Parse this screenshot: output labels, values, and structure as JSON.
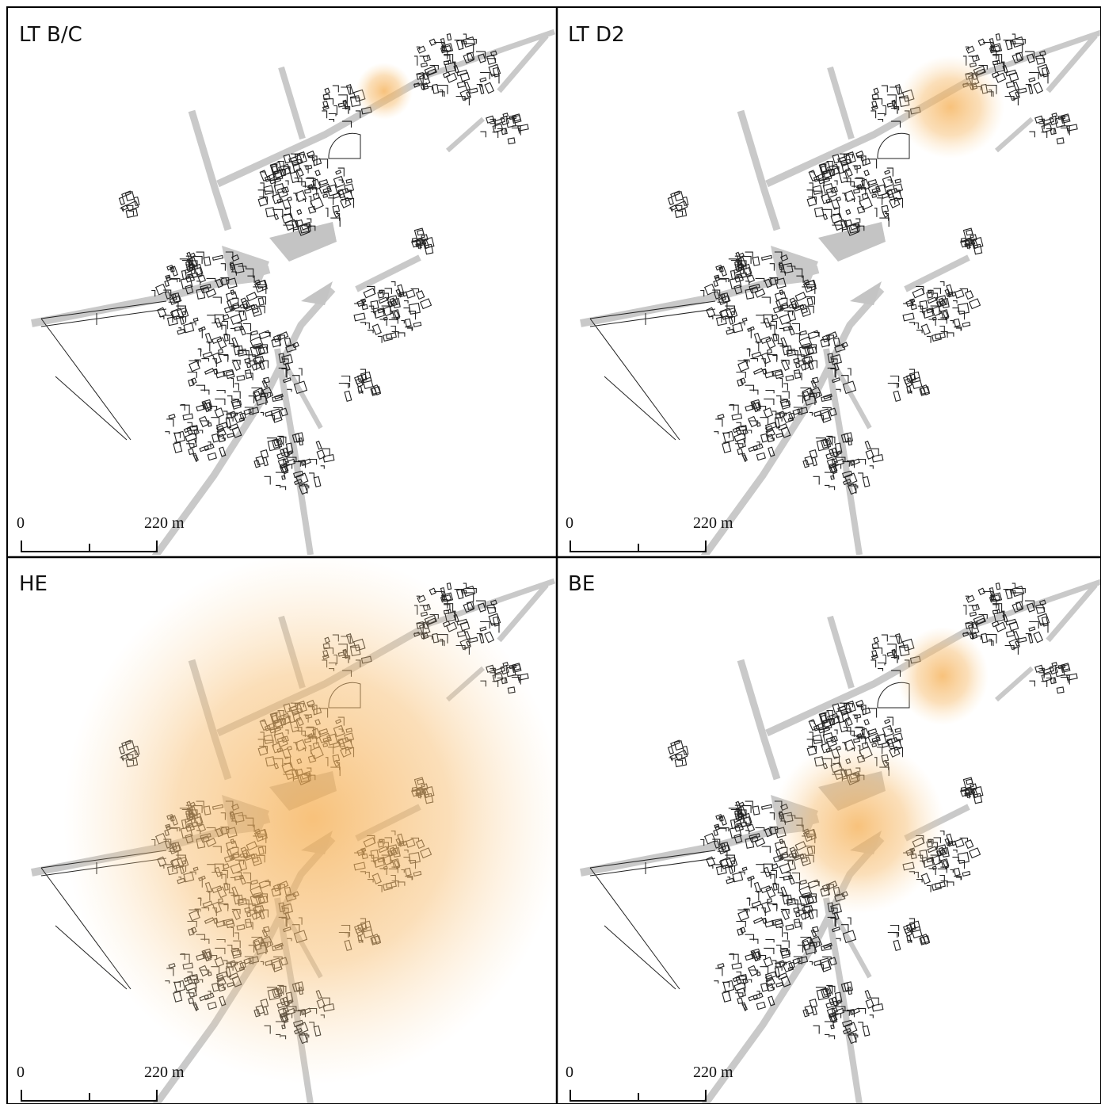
{
  "panels": [
    {
      "label": "LT B/C",
      "scale": {
        "start": "0",
        "end": "220 m"
      }
    },
    {
      "label": "LT D2",
      "scale": {
        "start": "0",
        "end": "220 m"
      }
    },
    {
      "label": "HE",
      "scale": {
        "start": "0",
        "end": "220 m"
      }
    },
    {
      "label": "BE",
      "scale": {
        "start": "0",
        "end": "220 m"
      }
    }
  ]
}
